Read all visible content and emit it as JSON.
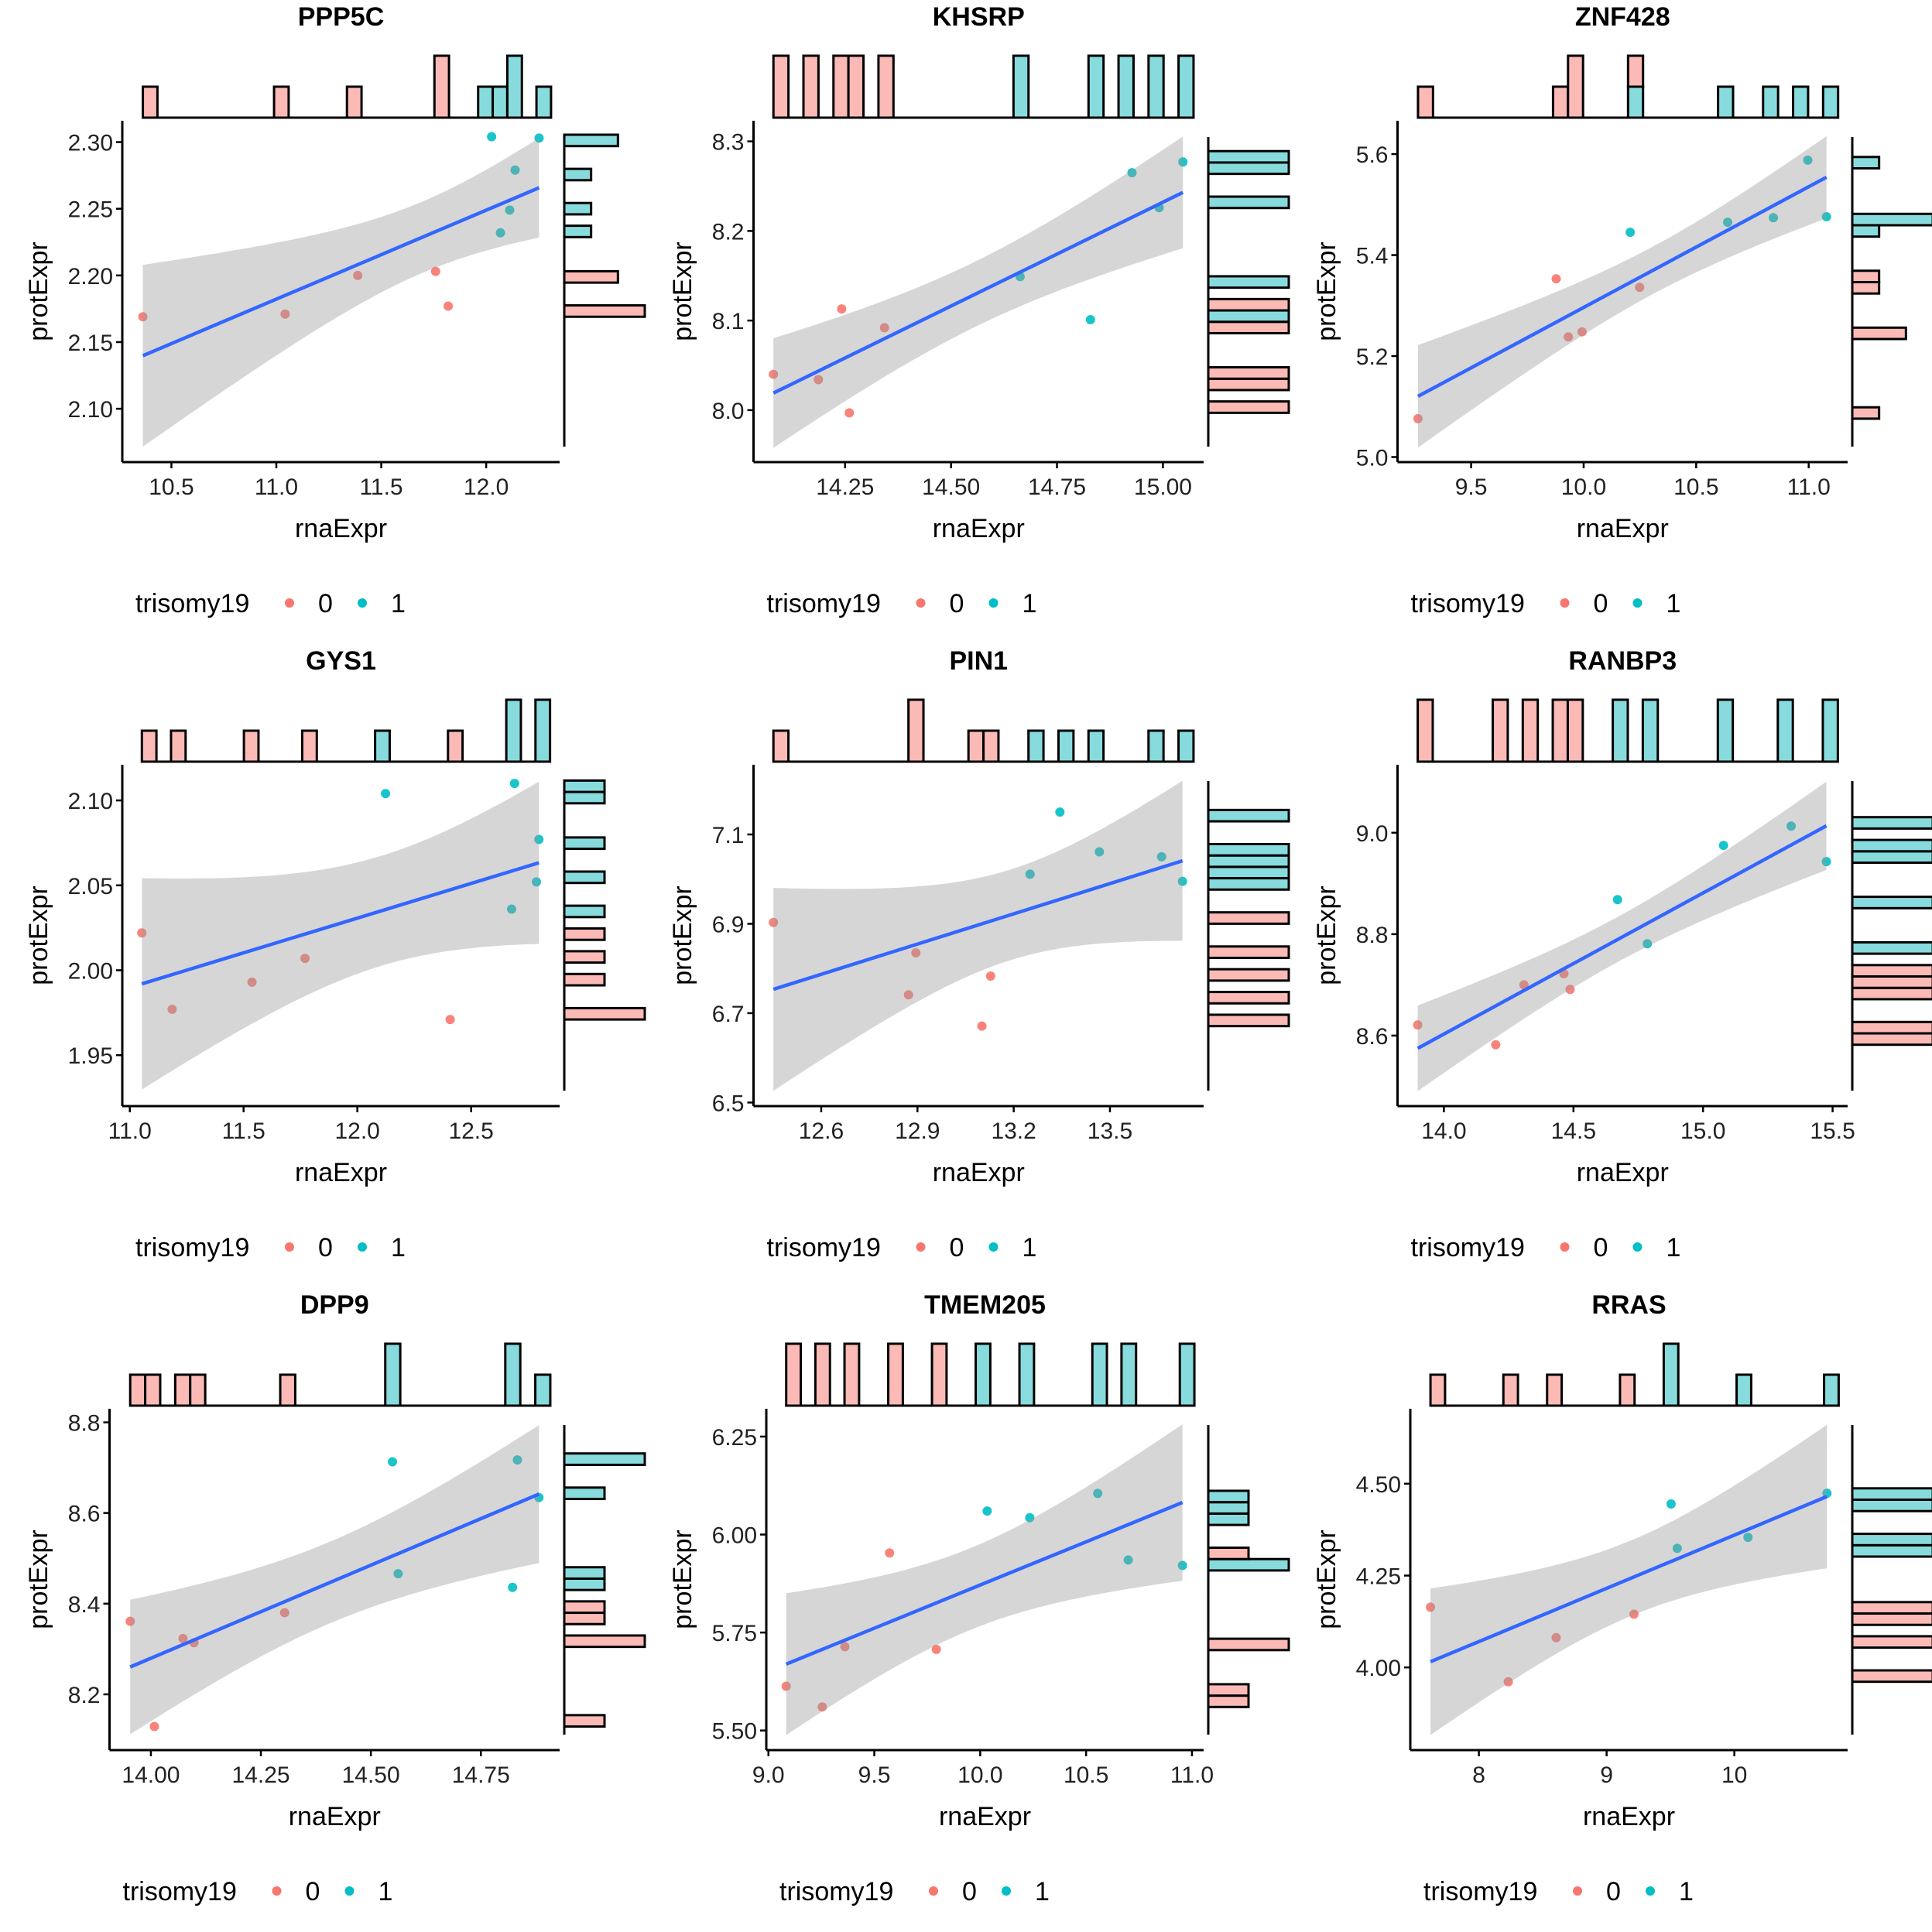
{
  "legend": {
    "title": "trisomy19",
    "placement": "bottom",
    "labels": [
      "0",
      "1"
    ]
  },
  "colors": {
    "group_0": "#F8766D",
    "group_1": "#00BFC4",
    "fit_line": "#3366FF",
    "ci_band": "#999999"
  },
  "chart_data": [
    {
      "type": "scatter",
      "title": "PPP5C",
      "xlabel": "rnaExpr",
      "ylabel": "protExpr",
      "xlim": [
        10.266,
        12.35
      ],
      "ylim": [
        2.06,
        2.316
      ],
      "x_ticks": [
        "10.5",
        "11.0",
        "11.5",
        "12.0"
      ],
      "y_ticks": [
        "2.10",
        "2.15",
        "2.20",
        "2.25",
        "2.30"
      ],
      "smooth": "linear fit with 95% CI",
      "marginal": "histogram",
      "series": [
        {
          "name": "0",
          "x": [
            10.364,
            11.042,
            11.388,
            11.759,
            11.819
          ],
          "y": [
            2.169,
            2.171,
            2.2,
            2.203,
            2.177
          ]
        },
        {
          "name": "1",
          "x": [
            12.026,
            12.068,
            12.112,
            12.138,
            12.252
          ],
          "y": [
            2.304,
            2.232,
            2.249,
            2.279,
            2.303
          ]
        }
      ]
    },
    {
      "type": "scatter",
      "title": "KHSRP",
      "xlabel": "rnaExpr",
      "ylabel": "protExpr",
      "xlim": [
        14.034,
        15.096
      ],
      "ylim": [
        7.942,
        8.323
      ],
      "x_ticks": [
        "14.25",
        "14.50",
        "14.75",
        "15.00"
      ],
      "y_ticks": [
        "8.0",
        "8.1",
        "8.2",
        "8.3"
      ],
      "smooth": "linear fit with 95% CI",
      "marginal": "histogram",
      "series": [
        {
          "name": "0",
          "x": [
            14.081,
            14.187,
            14.242,
            14.26,
            14.343
          ],
          "y": [
            8.04,
            8.034,
            8.113,
            7.997,
            8.092
          ]
        },
        {
          "name": "1",
          "x": [
            14.663,
            14.829,
            14.927,
            14.991,
            15.047
          ],
          "y": [
            8.149,
            8.101,
            8.265,
            8.226,
            8.277
          ]
        }
      ]
    },
    {
      "type": "scatter",
      "title": "ZNF428",
      "xlabel": "rnaExpr",
      "ylabel": "protExpr",
      "xlim": [
        9.173,
        11.173
      ],
      "ylim": [
        4.99,
        5.666
      ],
      "x_ticks": [
        "9.5",
        "10.0",
        "10.5",
        "11.0"
      ],
      "y_ticks": [
        "5.0",
        "5.2",
        "5.4",
        "5.6"
      ],
      "smooth": "linear fit with 95% CI",
      "marginal": "histogram",
      "series": [
        {
          "name": "0",
          "x": [
            9.264,
            9.878,
            9.932,
            9.993,
            10.249
          ],
          "y": [
            5.076,
            5.353,
            5.238,
            5.248,
            5.336
          ]
        },
        {
          "name": "1",
          "x": [
            10.207,
            10.64,
            10.843,
            10.996,
            11.079
          ],
          "y": [
            5.445,
            5.465,
            5.474,
            5.588,
            5.476
          ]
        }
      ]
    },
    {
      "type": "scatter",
      "title": "GYS1",
      "xlabel": "rnaExpr",
      "ylabel": "protExpr",
      "xlim": [
        10.967,
        12.889
      ],
      "ylim": [
        1.92,
        2.121
      ],
      "x_ticks": [
        "11.0",
        "11.5",
        "12.0",
        "12.5"
      ],
      "y_ticks": [
        "1.95",
        "2.00",
        "2.05",
        "2.10"
      ],
      "smooth": "linear fit with 95% CI",
      "marginal": "histogram",
      "series": [
        {
          "name": "0",
          "x": [
            11.053,
            11.186,
            11.537,
            11.77,
            12.408
          ],
          "y": [
            2.022,
            1.977,
            1.993,
            2.007,
            1.971
          ]
        },
        {
          "name": "1",
          "x": [
            12.124,
            12.691,
            12.798,
            12.787,
            12.678
          ],
          "y": [
            2.104,
            2.11,
            2.077,
            2.052,
            2.036
          ]
        }
      ]
    },
    {
      "type": "scatter",
      "title": "PIN1",
      "xlabel": "rnaExpr",
      "ylabel": "protExpr",
      "xlim": [
        12.389,
        13.792
      ],
      "ylim": [
        6.492,
        7.256
      ],
      "x_ticks": [
        "12.6",
        "12.9",
        "13.2",
        "13.5"
      ],
      "y_ticks": [
        "6.5",
        "6.7",
        "6.9",
        "7.1"
      ],
      "smooth": "linear fit with 95% CI",
      "marginal": "histogram",
      "series": [
        {
          "name": "0",
          "x": [
            12.451,
            12.895,
            12.872,
            13.128,
            13.101
          ],
          "y": [
            6.903,
            6.835,
            6.741,
            6.783,
            6.671
          ]
        },
        {
          "name": "1",
          "x": [
            13.251,
            13.344,
            13.467,
            13.661,
            13.726
          ],
          "y": [
            7.011,
            7.15,
            7.061,
            7.05,
            6.995
          ]
        }
      ]
    },
    {
      "type": "scatter",
      "title": "RANBP3",
      "xlabel": "rnaExpr",
      "ylabel": "protExpr",
      "xlim": [
        13.821,
        15.558
      ],
      "ylim": [
        8.461,
        9.134
      ],
      "x_ticks": [
        "14.0",
        "14.5",
        "15.0",
        "15.5"
      ],
      "y_ticks": [
        "8.6",
        "8.8",
        "9.0"
      ],
      "smooth": "linear fit with 95% CI",
      "marginal": "histogram",
      "series": [
        {
          "name": "0",
          "x": [
            13.899,
            14.2,
            14.309,
            14.463,
            14.487
          ],
          "y": [
            8.621,
            8.582,
            8.7,
            8.722,
            8.691
          ]
        },
        {
          "name": "1",
          "x": [
            14.67,
            14.785,
            15.079,
            15.34,
            15.476
          ],
          "y": [
            8.868,
            8.781,
            8.975,
            9.013,
            8.943
          ]
        }
      ]
    },
    {
      "type": "scatter",
      "title": "DPP9",
      "xlabel": "rnaExpr",
      "ylabel": "protExpr",
      "xlim": [
        13.906,
        14.929
      ],
      "ylim": [
        8.077,
        8.83
      ],
      "x_ticks": [
        "14.00",
        "14.25",
        "14.50",
        "14.75"
      ],
      "y_ticks": [
        "8.2",
        "8.4",
        "8.6",
        "8.8"
      ],
      "smooth": "linear fit with 95% CI",
      "marginal": "histogram",
      "series": [
        {
          "name": "0",
          "x": [
            13.953,
            14.008,
            14.073,
            14.098,
            14.304
          ],
          "y": [
            8.361,
            8.129,
            8.323,
            8.314,
            8.38
          ]
        },
        {
          "name": "1",
          "x": [
            14.549,
            14.562,
            14.822,
            14.833,
            14.882
          ],
          "y": [
            8.713,
            8.466,
            8.436,
            8.717,
            8.634
          ]
        }
      ]
    },
    {
      "type": "scatter",
      "title": "TMEM205",
      "xlabel": "rnaExpr",
      "ylabel": "protExpr",
      "xlim": [
        8.99,
        11.055
      ],
      "ylim": [
        5.45,
        6.321
      ],
      "x_ticks": [
        "9.0",
        "9.5",
        "10.0",
        "10.5",
        "11.0"
      ],
      "y_ticks": [
        "5.50",
        "5.75",
        "6.00",
        "6.25"
      ],
      "smooth": "linear fit with 95% CI",
      "marginal": "histogram",
      "series": [
        {
          "name": "0",
          "x": [
            9.084,
            9.254,
            9.361,
            9.572,
            9.793
          ],
          "y": [
            5.613,
            5.56,
            5.714,
            5.953,
            5.707
          ]
        },
        {
          "name": "1",
          "x": [
            10.033,
            10.234,
            10.555,
            10.699,
            10.955
          ],
          "y": [
            6.06,
            6.043,
            6.105,
            5.935,
            5.921
          ]
        }
      ]
    },
    {
      "type": "scatter",
      "title": "RRAS",
      "xlabel": "rnaExpr",
      "ylabel": "protExpr",
      "xlim": [
        7.463,
        10.887
      ],
      "ylim": [
        3.775,
        4.704
      ],
      "x_ticks": [
        "8",
        "9",
        "10"
      ],
      "y_ticks": [
        "4.00",
        "4.25",
        "4.50"
      ],
      "smooth": "linear fit with 95% CI",
      "marginal": "histogram",
      "series": [
        {
          "name": "0",
          "x": [
            7.621,
            8.23,
            8.605,
            9.214
          ],
          "y": [
            4.164,
            3.961,
            4.081,
            4.145
          ]
        },
        {
          "name": "1",
          "x": [
            9.505,
            9.553,
            10.107,
            10.725
          ],
          "y": [
            4.445,
            4.324,
            4.354,
            4.474
          ]
        }
      ]
    }
  ]
}
